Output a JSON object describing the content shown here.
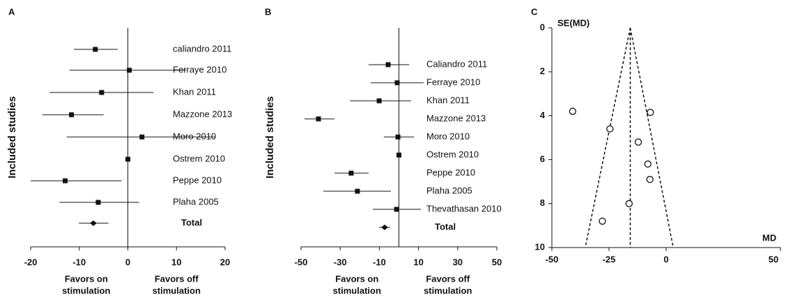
{
  "chart_data": [
    {
      "type": "forest",
      "panel": "A",
      "ylabel": "Included studies",
      "categories": [
        "caliandro 2011",
        "Ferraye 2010",
        "Khan 2011",
        "Mazzone 2013",
        "Moro 2010",
        "Ostrem 2010",
        "Peppe 2010",
        "Plaha 2005",
        "Total"
      ],
      "values": [
        -6.7,
        0.3,
        -5.4,
        -11.6,
        2.9,
        0,
        -12.9,
        -6.1,
        -7.1
      ],
      "ci_low": [
        -11.1,
        -12,
        -16.1,
        -17.6,
        -12.6,
        0,
        -20,
        -14.1,
        -10.1
      ],
      "ci_high": [
        -2.1,
        12,
        5.3,
        -5,
        17.9,
        0,
        -1.3,
        2.3,
        -4
      ],
      "xlim": [
        -20,
        20
      ],
      "xticks": [
        -20,
        -10,
        0,
        10,
        20
      ],
      "x_notes": [
        [
          "Favors on",
          "stimulation"
        ],
        [
          "Favors off",
          "stimulation"
        ]
      ],
      "color": "#111111"
    },
    {
      "type": "forest",
      "panel": "B",
      "ylabel": "Included studies",
      "categories": [
        "Caliandro 2011",
        "Ferraye 2010",
        "Khan 2011",
        "Mazzone 2013",
        "Moro 2010",
        "Ostrem 2010",
        "Peppe 2010",
        "Plaha 2005",
        "Thevathasan 2010",
        "Total"
      ],
      "values": [
        -5.5,
        -0.9,
        -10.1,
        -41.1,
        -0.5,
        0,
        -24.4,
        -21.2,
        -1.2,
        -7.3
      ],
      "ci_low": [
        -15.5,
        -14.4,
        -25,
        -48.2,
        -7.7,
        0,
        -32.9,
        -38.6,
        -13.3,
        -10.1
      ],
      "ci_high": [
        5.2,
        12.6,
        6.2,
        -32.9,
        7.7,
        0,
        -15.5,
        -4.1,
        11.2,
        -4.4
      ],
      "xlim": [
        -50,
        50
      ],
      "xticks": [
        -50,
        -30,
        -10,
        10,
        30,
        50
      ],
      "x_notes": [
        [
          "Favors on",
          "stimulation"
        ],
        [
          "Favors off",
          "stimulation"
        ]
      ],
      "color": "#111111"
    },
    {
      "type": "funnel",
      "panel": "C",
      "ylabel": "SE(MD)",
      "xlabel": "MD",
      "x": [
        -40.9,
        -6.9,
        -24.6,
        -12.2,
        -8.0,
        -7.1,
        -16.2,
        -27.9
      ],
      "values": [
        3.8,
        3.85,
        4.6,
        5.2,
        6.2,
        6.9,
        8.0,
        8.8
      ],
      "funnel_center": -15.7,
      "funnel_base": [
        -35.4,
        3.1
      ],
      "xlim": [
        -50,
        50
      ],
      "xticks": [
        -50,
        -25,
        0,
        50
      ],
      "ylim": [
        0,
        10
      ],
      "yticks": [
        0,
        2,
        4,
        6,
        8,
        10
      ],
      "y_reversed": true,
      "color": "#111111"
    }
  ]
}
